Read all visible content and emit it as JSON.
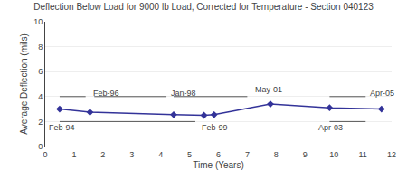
{
  "chart_data": {
    "type": "line",
    "title": "Deflection Below Load for 9000 lb Load, Corrected for Temperature - Section 040123",
    "xlabel": "Time (Years)",
    "ylabel": "Average Deflection (mils)",
    "x": [
      0.5,
      1.55,
      4.45,
      5.5,
      5.85,
      7.8,
      9.85,
      11.65
    ],
    "values": [
      3.0,
      2.75,
      2.55,
      2.5,
      2.55,
      3.4,
      3.1,
      3.0
    ],
    "color": "#333399",
    "marker": "diamond",
    "xlim": [
      0,
      12
    ],
    "ylim": [
      0,
      10
    ],
    "xticks": [
      0,
      1,
      2,
      3,
      4,
      5,
      6,
      7,
      8,
      9,
      10,
      11,
      12
    ],
    "yticks": [
      0,
      2,
      4,
      6,
      8,
      10
    ],
    "grid": "y",
    "annotations": [
      {
        "text": "Feb-94",
        "x": 0.05,
        "y": 1.55
      },
      {
        "text": "Feb-96",
        "x": 1.6,
        "y": 4.3
      },
      {
        "text": "Jan-98",
        "x": 4.3,
        "y": 4.3
      },
      {
        "text": "Feb-99",
        "x": 5.35,
        "y": 1.55
      },
      {
        "text": "May-01",
        "x": 7.2,
        "y": 4.55
      },
      {
        "text": "Apr-03",
        "x": 9.4,
        "y": 1.55
      },
      {
        "text": "Apr-05",
        "x": 11.2,
        "y": 4.3
      }
    ],
    "reference_lines": [
      {
        "y": 4.0,
        "color": "#555555",
        "segments": [
          [
            0.5,
            1.4
          ],
          [
            1.7,
            4.2
          ],
          [
            4.45,
            7.0
          ],
          [
            9.85,
            11.1
          ]
        ]
      },
      {
        "y": 2.0,
        "color": "#555555",
        "segments": [
          [
            0.5,
            5.2
          ],
          [
            9.85,
            11.1
          ]
        ]
      }
    ]
  }
}
